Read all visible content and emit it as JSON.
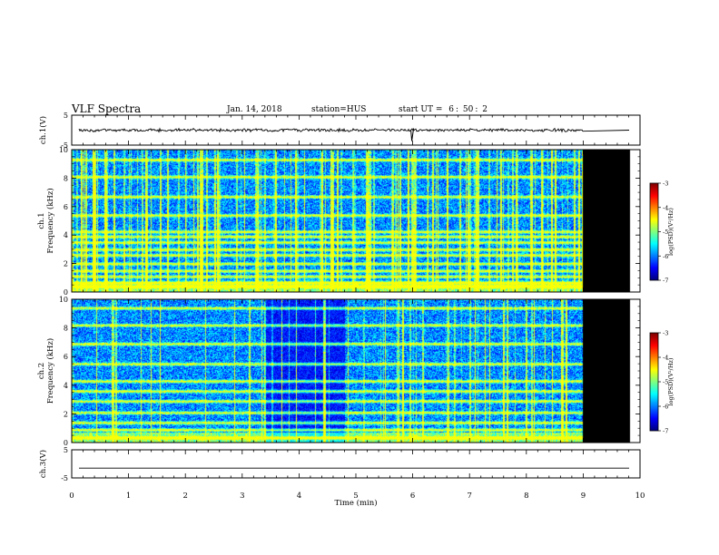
{
  "header": {
    "title": "VLF Spectra",
    "date": "Jan. 14, 2018",
    "station": "station=HUS",
    "start_label": "start UT =",
    "start_h": "6",
    "start_m": "50",
    "start_s": "2"
  },
  "chart_data": [
    {
      "type": "line",
      "panel": "ch1-waveform",
      "ylabel": "ch.1(V)",
      "ylim": [
        -5,
        5
      ],
      "yticks": [
        "5",
        "-5"
      ],
      "trace_level": 0,
      "noise_amplitude": 0.6,
      "data_end_min": 9.0,
      "spike_at_min": 6.0
    },
    {
      "type": "heatmap",
      "panel": "ch1-spectrogram",
      "ylabel": "ch.1",
      "ylabel2": "Frequency (kHz)",
      "ylim": [
        0,
        10
      ],
      "yticks": [
        "0",
        "2",
        "4",
        "6",
        "8",
        "10"
      ],
      "xlim": [
        0,
        10
      ],
      "data_end_min": 9.0,
      "bands_khz": [
        0.4,
        0.7,
        1.1,
        1.5,
        2.0,
        2.6,
        3.0,
        3.5,
        3.9,
        4.25,
        5.4,
        6.7,
        8.1,
        9.3
      ],
      "colorbar": {
        "label": "log(PSD)(V²/Hz)",
        "ticks": [
          "-3",
          "-4",
          "-5",
          "-6",
          "-7"
        ],
        "range": [
          -7,
          -3
        ]
      }
    },
    {
      "type": "heatmap",
      "panel": "ch2-spectrogram",
      "ylabel": "ch.2",
      "ylabel2": "Frequency (kHz)",
      "ylim": [
        0,
        10
      ],
      "yticks": [
        "0",
        "2",
        "4",
        "6",
        "8",
        "10"
      ],
      "xlim": [
        0,
        10
      ],
      "data_end_min": 9.0,
      "bands_khz": [
        0.35,
        0.9,
        1.4,
        2.1,
        2.9,
        3.6,
        4.3,
        5.5,
        6.9,
        8.2,
        9.4
      ],
      "colorbar": {
        "label": "log(PSD)(V²/Hz)",
        "ticks": [
          "-3",
          "-4",
          "-5",
          "-6",
          "-7"
        ],
        "range": [
          -7,
          -3
        ]
      }
    },
    {
      "type": "line",
      "panel": "ch3-waveform",
      "ylabel": "ch.3(V)",
      "ylim": [
        -5,
        5
      ],
      "yticks": [
        "5",
        "-5"
      ],
      "trace_level": -1.5,
      "noise_amplitude": 0
    }
  ],
  "xaxis": {
    "label": "Time (min)",
    "ticks": [
      "0",
      "1",
      "2",
      "3",
      "4",
      "5",
      "6",
      "7",
      "8",
      "9",
      "10"
    ],
    "range": [
      0,
      10
    ]
  }
}
